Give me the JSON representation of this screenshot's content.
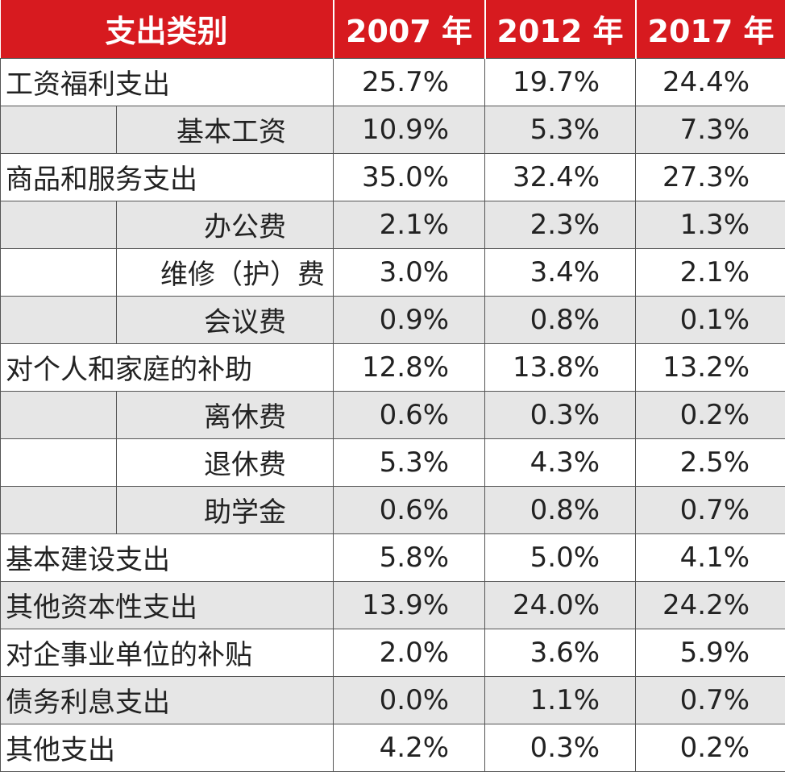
{
  "table": {
    "headers": [
      "支出类别",
      "2007 年",
      "2012 年",
      "2017 年"
    ],
    "rows": [
      {
        "label": "工资福利支出",
        "sub": false,
        "shade": false,
        "values": [
          "25.7%",
          "19.7%",
          "24.4%"
        ]
      },
      {
        "label": "基本工资",
        "sub": true,
        "shade": true,
        "values": [
          "10.9%",
          "5.3%",
          "7.3%"
        ]
      },
      {
        "label": "商品和服务支出",
        "sub": false,
        "shade": false,
        "values": [
          "35.0%",
          "32.4%",
          "27.3%"
        ]
      },
      {
        "label": "办公费",
        "sub": true,
        "shade": true,
        "values": [
          "2.1%",
          "2.3%",
          "1.3%"
        ]
      },
      {
        "label": "维修（护）费",
        "sub": true,
        "shade": false,
        "values": [
          "3.0%",
          "3.4%",
          "2.1%"
        ]
      },
      {
        "label": "会议费",
        "sub": true,
        "shade": true,
        "values": [
          "0.9%",
          "0.8%",
          "0.1%"
        ]
      },
      {
        "label": "对个人和家庭的补助",
        "sub": false,
        "shade": false,
        "values": [
          "12.8%",
          "13.8%",
          "13.2%"
        ]
      },
      {
        "label": "离休费",
        "sub": true,
        "shade": true,
        "values": [
          "0.6%",
          "0.3%",
          "0.2%"
        ]
      },
      {
        "label": "退休费",
        "sub": true,
        "shade": false,
        "values": [
          "5.3%",
          "4.3%",
          "2.5%"
        ]
      },
      {
        "label": "助学金",
        "sub": true,
        "shade": true,
        "values": [
          "0.6%",
          "0.8%",
          "0.7%"
        ]
      },
      {
        "label": "基本建设支出",
        "sub": false,
        "shade": false,
        "values": [
          "5.8%",
          "5.0%",
          "4.1%"
        ]
      },
      {
        "label": "其他资本性支出",
        "sub": false,
        "shade": true,
        "values": [
          "13.9%",
          "24.0%",
          "24.2%"
        ]
      },
      {
        "label": "对企事业单位的补贴",
        "sub": false,
        "shade": false,
        "values": [
          "2.0%",
          "3.6%",
          "5.9%"
        ]
      },
      {
        "label": "债务利息支出",
        "sub": false,
        "shade": true,
        "values": [
          "0.0%",
          "1.1%",
          "0.7%"
        ]
      },
      {
        "label": "其他支出",
        "sub": false,
        "shade": false,
        "values": [
          "4.2%",
          "0.3%",
          "0.2%"
        ]
      }
    ]
  },
  "colors": {
    "header_bg": "#d71a1f",
    "header_text": "#ffffff",
    "shade_row": "#e6e6e6",
    "border": "#555555"
  }
}
